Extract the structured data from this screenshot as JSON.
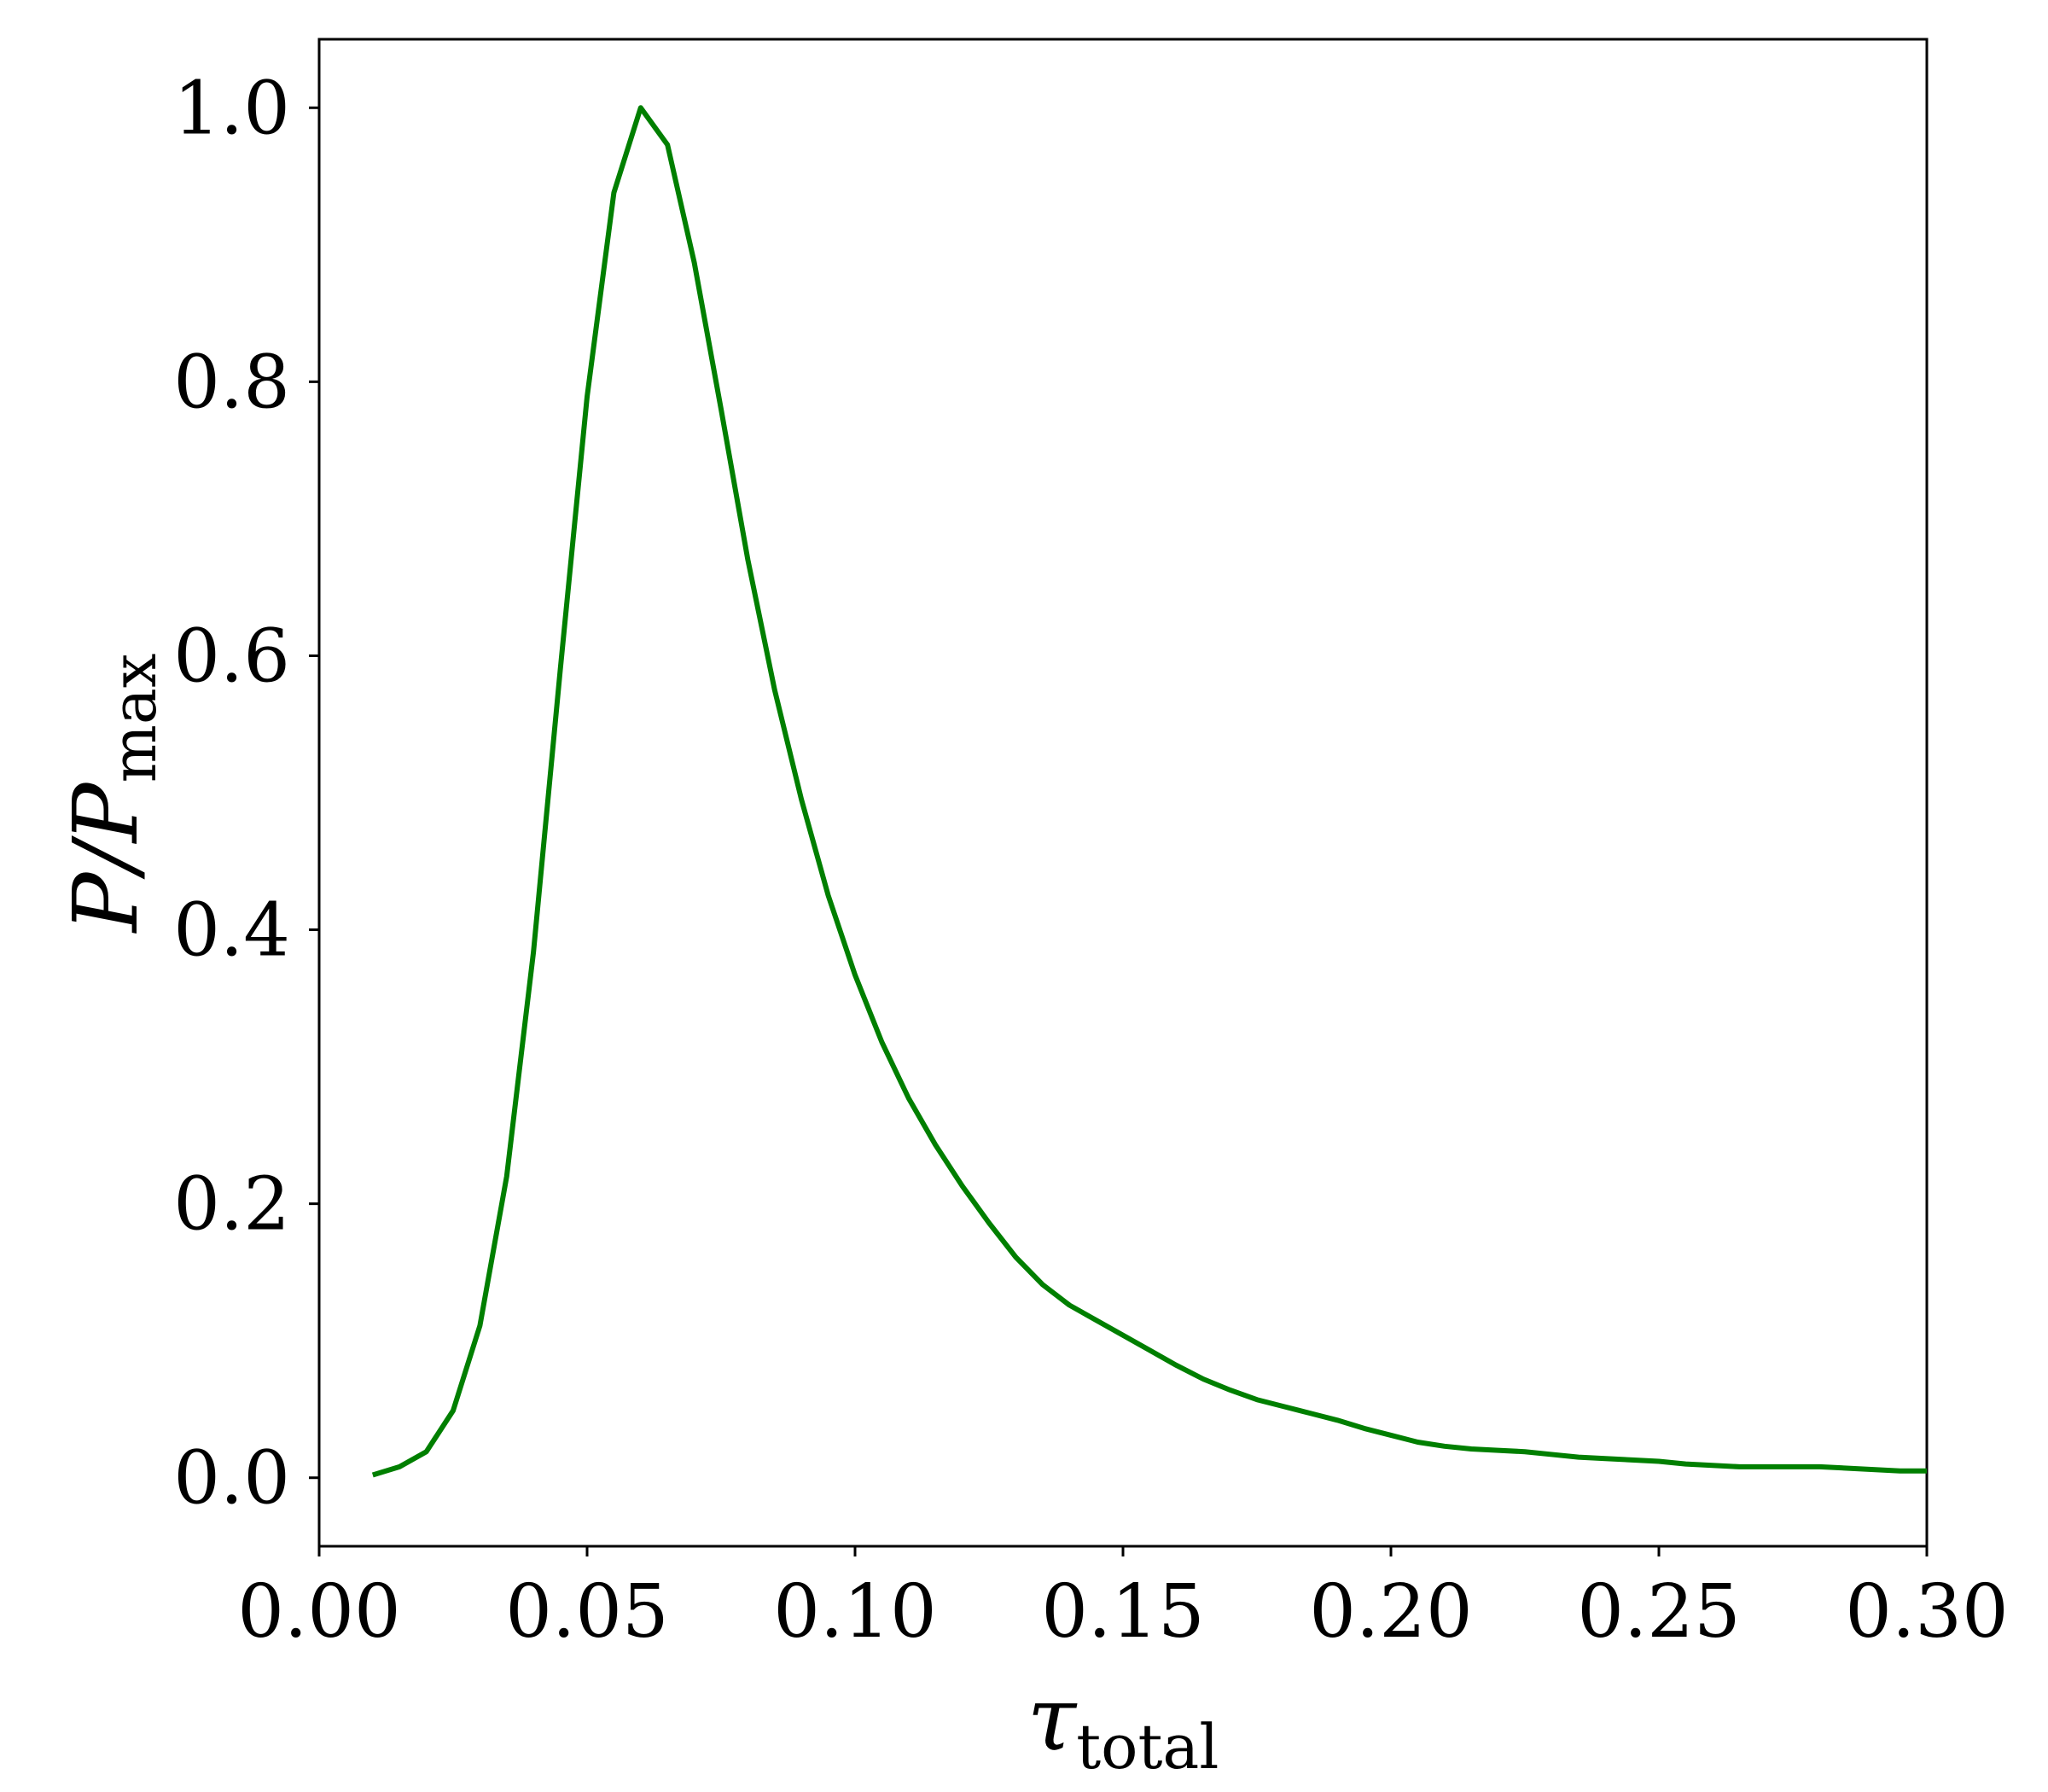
{
  "chart_data": {
    "type": "line",
    "xlabel": {
      "text": "τ",
      "subscript": "total"
    },
    "ylabel": {
      "text": "P/P",
      "subscript": "max"
    },
    "x": [
      0.01,
      0.015,
      0.02,
      0.025,
      0.03,
      0.035,
      0.04,
      0.045,
      0.05,
      0.055,
      0.06,
      0.065,
      0.07,
      0.075,
      0.08,
      0.085,
      0.09,
      0.095,
      0.1,
      0.105,
      0.11,
      0.115,
      0.12,
      0.125,
      0.13,
      0.135,
      0.14,
      0.145,
      0.15,
      0.155,
      0.16,
      0.165,
      0.17,
      0.175,
      0.18,
      0.185,
      0.19,
      0.195,
      0.2,
      0.205,
      0.21,
      0.215,
      0.22,
      0.225,
      0.23,
      0.235,
      0.24,
      0.245,
      0.25,
      0.255,
      0.26,
      0.265,
      0.27,
      0.275,
      0.28,
      0.285,
      0.29,
      0.295,
      0.3
    ],
    "series": [
      {
        "color": "#007f00",
        "values": [
          0.002,
          0.008,
          0.019,
          0.049,
          0.111,
          0.22,
          0.384,
          0.59,
          0.789,
          0.938,
          1.0,
          0.973,
          0.887,
          0.78,
          0.67,
          0.575,
          0.495,
          0.425,
          0.367,
          0.318,
          0.277,
          0.243,
          0.213,
          0.186,
          0.161,
          0.141,
          0.126,
          0.115,
          0.104,
          0.093,
          0.082,
          0.072,
          0.064,
          0.057,
          0.052,
          0.047,
          0.042,
          0.036,
          0.031,
          0.026,
          0.023,
          0.021,
          0.02,
          0.019,
          0.017,
          0.015,
          0.014,
          0.013,
          0.012,
          0.01,
          0.009,
          0.008,
          0.008,
          0.008,
          0.008,
          0.007,
          0.006,
          0.005,
          0.005
        ]
      }
    ],
    "xlim": [
      0,
      0.3
    ],
    "ylim": [
      -0.05,
      1.05
    ],
    "xticks": [
      {
        "value": 0,
        "label": "0.00"
      },
      0.05,
      {
        "value": 0.1,
        "label": "0.10"
      },
      0.15,
      {
        "value": 0.2,
        "label": "0.20"
      },
      0.25,
      {
        "value": 0.3,
        "label": "0.30"
      }
    ],
    "yticks": [
      {
        "value": 0,
        "label": "0.0"
      },
      0.2,
      0.4,
      0.6,
      0.8,
      {
        "value": 1,
        "label": "1.0"
      }
    ],
    "grid": false
  }
}
